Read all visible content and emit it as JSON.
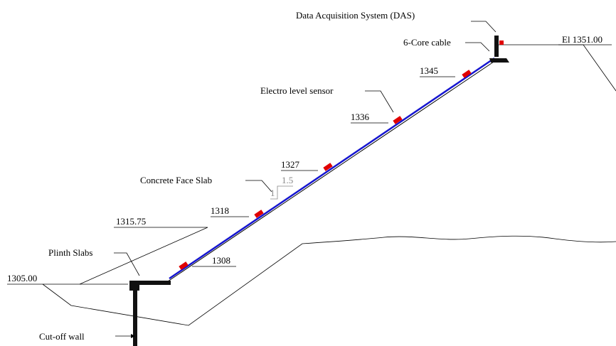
{
  "labels": {
    "das": "Data Acquisition System (DAS)",
    "crest_elevation": "El 1351.00",
    "cable": "6-Core cable",
    "sensor": "Electro level sensor",
    "face_slab": "Concrete Face Slab",
    "plinth": "Plinth Slabs",
    "cutoff": "Cut-off wall",
    "upstream_fill": "1315.75",
    "base_elevation": "1305.00",
    "slope_vertical": "1",
    "slope_horizontal": "1.5"
  },
  "sensor_elevations": [
    "1345",
    "1336",
    "1327",
    "1318",
    "1308"
  ]
}
